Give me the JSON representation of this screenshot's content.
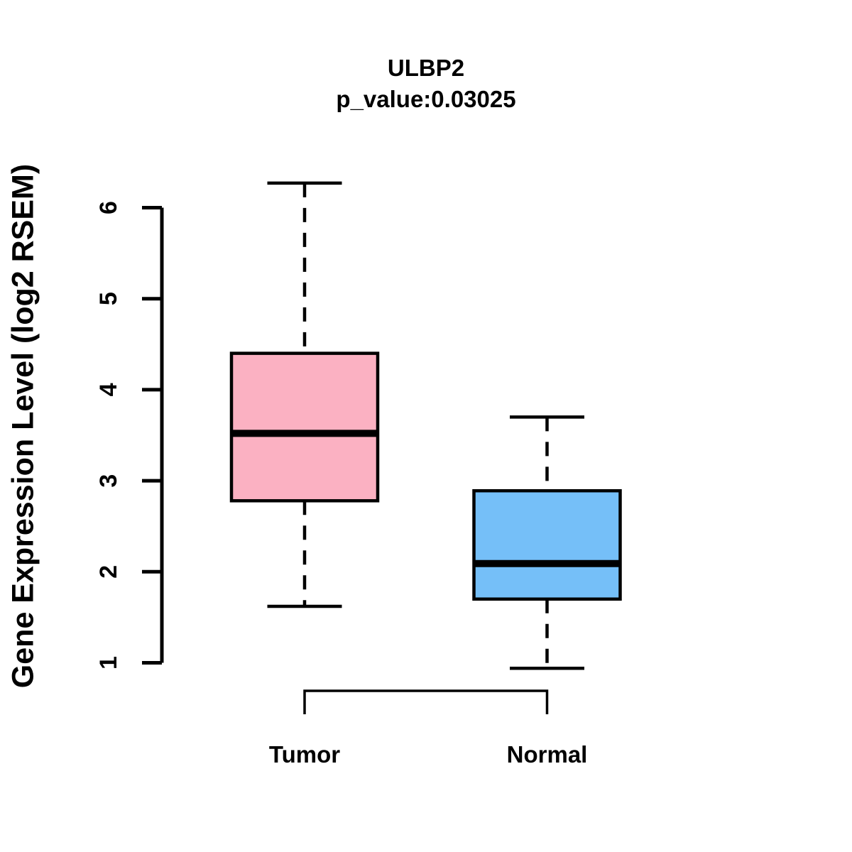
{
  "title": "ULBP2",
  "subtitle": "p_value:0.03025",
  "chart_data": {
    "type": "boxplot",
    "title": "ULBP2",
    "subtitle": "p_value:0.03025",
    "p_value": 0.03025,
    "gene": "ULBP2",
    "ylabel": "Gene Expression Level (log2 RSEM)",
    "yticks": [
      1,
      2,
      3,
      4,
      5,
      6
    ],
    "ylim": [
      0.7,
      6.35
    ],
    "grid": false,
    "legend": "none",
    "categories": [
      "Tumor",
      "Normal"
    ],
    "series": [
      {
        "name": "Tumor",
        "whisker_low": 1.62,
        "q1": 2.78,
        "median": 3.52,
        "q3": 4.4,
        "whisker_high": 6.27,
        "outliers": [],
        "fill_color": "#FBB1C2"
      },
      {
        "name": "Normal",
        "whisker_low": 0.94,
        "q1": 1.7,
        "median": 2.09,
        "q3": 2.89,
        "whisker_high": 3.7,
        "outliers": [],
        "fill_color": "#75BFF8"
      }
    ],
    "colors": {
      "line": "#000000",
      "background": "#FFFFFF",
      "tumor_fill": "#FBB1C2",
      "normal_fill": "#75BFF8"
    }
  }
}
